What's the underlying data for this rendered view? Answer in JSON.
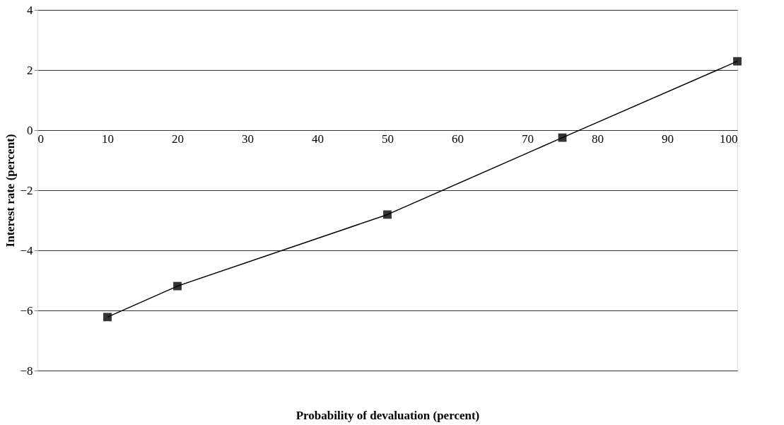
{
  "chart_data": {
    "type": "line",
    "xlabel": "Probability of devaluation (percent)",
    "ylabel": "Interest rate (percent)",
    "x": [
      10,
      20,
      50,
      75,
      100
    ],
    "series": [
      {
        "color": "#000000",
        "values": [
          -6.22,
          -5.19,
          -2.81,
          -0.25,
          2.29
        ]
      }
    ],
    "xlim": [
      0,
      100
    ],
    "xticks": [
      0,
      10,
      20,
      30,
      40,
      50,
      60,
      70,
      80,
      90,
      100
    ],
    "ylim": [
      -8,
      4
    ],
    "yticks": [
      -8,
      -6,
      -4,
      -2,
      0,
      2,
      4
    ],
    "grid": "y",
    "marker": "square",
    "line_style": "solid"
  }
}
